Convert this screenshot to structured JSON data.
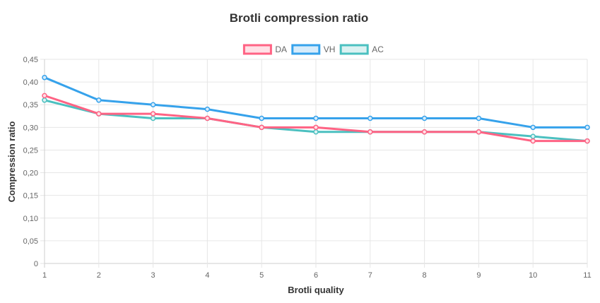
{
  "chart_data": {
    "type": "line",
    "title": "Brotli compression ratio",
    "xlabel": "Brotli quality",
    "ylabel": "Compression ratio",
    "x": [
      1,
      2,
      3,
      4,
      5,
      6,
      7,
      8,
      9,
      10,
      11
    ],
    "x_tick_labels": [
      "1",
      "2",
      "3",
      "4",
      "5",
      "6",
      "7",
      "8",
      "9",
      "10",
      "11"
    ],
    "ylim": [
      0,
      0.45
    ],
    "y_ticks": [
      0,
      0.05,
      0.1,
      0.15,
      0.2,
      0.25,
      0.3,
      0.35,
      0.4,
      0.45
    ],
    "y_tick_labels": [
      "0",
      "0,05",
      "0,10",
      "0,15",
      "0,20",
      "0,25",
      "0,30",
      "0,35",
      "0,40",
      "0,45"
    ],
    "grid": true,
    "legend_position": "top",
    "series": [
      {
        "name": "DA",
        "color": "#ff6384",
        "fill": "#ffe0e6",
        "values": [
          0.37,
          0.33,
          0.33,
          0.32,
          0.3,
          0.3,
          0.29,
          0.29,
          0.29,
          0.27,
          0.27
        ]
      },
      {
        "name": "VH",
        "color": "#36a2eb",
        "fill": "#d7ecfb",
        "values": [
          0.41,
          0.36,
          0.35,
          0.34,
          0.32,
          0.32,
          0.32,
          0.32,
          0.32,
          0.3,
          0.3
        ]
      },
      {
        "name": "AC",
        "color": "#4bc0c0",
        "fill": "#dbf2f2",
        "values": [
          0.36,
          0.33,
          0.32,
          0.32,
          0.3,
          0.29,
          0.29,
          0.29,
          0.29,
          0.28,
          0.27
        ]
      }
    ]
  }
}
